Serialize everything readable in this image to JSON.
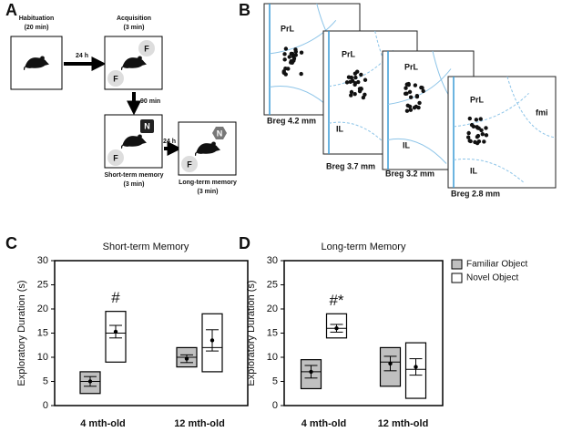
{
  "panel_a": {
    "label": "A",
    "stages": [
      {
        "name": "Habituation",
        "duration": "(20 min)"
      },
      {
        "name": "Acquisition",
        "duration": "(3 min)"
      },
      {
        "name": "Short-term memory",
        "duration": "(3 min)"
      },
      {
        "name": "Long-term memory",
        "duration": "(3 min)"
      }
    ],
    "intervals": [
      "24 h",
      "90 min",
      "24 h"
    ],
    "objects": [
      "F",
      "F",
      "N",
      "F",
      "N",
      "F"
    ]
  },
  "panel_b": {
    "label": "B",
    "sections": [
      {
        "bregma": "Breg 4.2 mm",
        "regions": [
          "PrL"
        ]
      },
      {
        "bregma": "Breg 3.7 mm",
        "regions": [
          "PrL",
          "IL"
        ]
      },
      {
        "bregma": "Breg 3.2 mm",
        "regions": [
          "PrL",
          "IL"
        ]
      },
      {
        "bregma": "Breg 2.8 mm",
        "regions": [
          "PrL",
          "IL",
          "fmi"
        ]
      }
    ]
  },
  "chart_data": [
    {
      "type": "box",
      "panel": "C",
      "title": "Short-term Memory",
      "y_label": "Exploratory Duration (s)",
      "categories": [
        "4 mth-old",
        "12 mth-old"
      ],
      "ylim": [
        0,
        30
      ],
      "yticks": [
        0,
        5,
        10,
        15,
        20,
        25,
        30
      ],
      "annotations": [
        "#"
      ],
      "series": [
        {
          "color": "#c0c0c0",
          "low": [
            2.5,
            8
          ],
          "high": [
            7,
            12
          ],
          "median": [
            5,
            10
          ],
          "mean": [
            5,
            9.7
          ],
          "error": [
            1,
            0.8
          ]
        },
        {
          "color": "#ffffff",
          "low": [
            9,
            7
          ],
          "high": [
            19.5,
            19
          ],
          "median": [
            15,
            12
          ],
          "mean": [
            15.3,
            13.5
          ],
          "error": [
            1.3,
            2.2
          ]
        }
      ]
    },
    {
      "type": "box",
      "panel": "D",
      "title": "Long-term Memory",
      "y_label": "Exploratory Duration (s)",
      "categories": [
        "4 mth-old",
        "12 mth-old"
      ],
      "ylim": [
        0,
        30
      ],
      "yticks": [
        0,
        5,
        10,
        15,
        20,
        25,
        30
      ],
      "annotations": [
        "#*"
      ],
      "legend": "right",
      "series": [
        {
          "name": "Familiar Object",
          "color": "#c0c0c0",
          "low": [
            3.5,
            4
          ],
          "high": [
            9.5,
            12
          ],
          "median": [
            7,
            9
          ],
          "mean": [
            7,
            8.7
          ],
          "error": [
            1.3,
            1.5
          ]
        },
        {
          "name": "Novel Object",
          "color": "#ffffff",
          "low": [
            14,
            1.5
          ],
          "high": [
            19,
            13
          ],
          "median": [
            16,
            7.5
          ],
          "mean": [
            16,
            8
          ],
          "error": [
            0.8,
            1.7
          ]
        }
      ]
    }
  ]
}
